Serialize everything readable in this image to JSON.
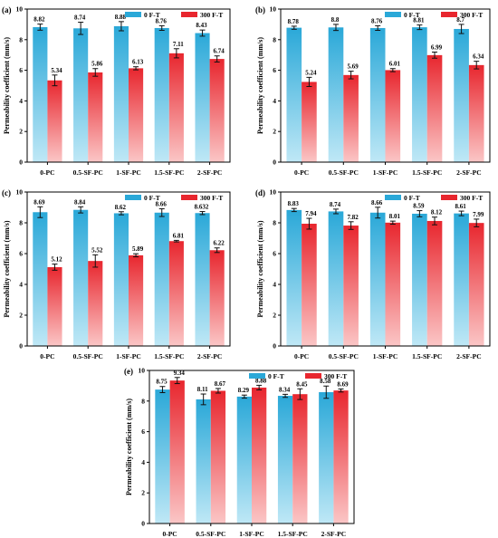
{
  "figure": {
    "type": "grouped-bar-panels"
  },
  "colors": {
    "series_a": "#2aa8d8",
    "series_a_light": "#bfe8f6",
    "series_b": "#e8262e",
    "series_b_light": "#fbc6c6",
    "axis": "#000000"
  },
  "chart_data": [
    {
      "type": "bar",
      "panel_label": "(a)",
      "categories": [
        "0-PC",
        "0.5-SF-PC",
        "1-SF-PC",
        "1.5-SF-PC",
        "2-SF-PC"
      ],
      "series": [
        {
          "name": "0 F-T",
          "values": [
            8.82,
            8.74,
            8.88,
            8.76,
            8.43
          ],
          "labels": [
            "8.82",
            "8.74",
            "8.88",
            "8.76",
            "8.43"
          ],
          "errors": [
            0.2,
            0.4,
            0.3,
            0.15,
            0.2
          ]
        },
        {
          "name": "300 F-T",
          "values": [
            5.34,
            5.86,
            6.13,
            7.11,
            6.74
          ],
          "labels": [
            "5.34",
            "5.86",
            "6.13",
            "7.11",
            "6.74"
          ],
          "errors": [
            0.35,
            0.25,
            0.1,
            0.3,
            0.2
          ]
        }
      ],
      "ylabel": "Permeability coefficient (mm/s)",
      "ylim": [
        0,
        10
      ],
      "yticks": [
        "0",
        "2",
        "4",
        "6",
        "8",
        "10"
      ],
      "legend": "top-right"
    },
    {
      "type": "bar",
      "panel_label": "(b)",
      "categories": [
        "0-PC",
        "0.5-SF-PC",
        "1-SF-PC",
        "1.5-SF-PC",
        "2-SF-PC"
      ],
      "series": [
        {
          "name": "0 F-T",
          "values": [
            8.78,
            8.8,
            8.76,
            8.81,
            8.7
          ],
          "labels": [
            "8.78",
            "8.8",
            "8.76",
            "8.81",
            "8.7"
          ],
          "errors": [
            0.1,
            0.2,
            0.15,
            0.15,
            0.3
          ]
        },
        {
          "name": "300 F-T",
          "values": [
            5.24,
            5.69,
            6.01,
            6.99,
            6.34
          ],
          "labels": [
            "5.24",
            "5.69",
            "6.01",
            "6.99",
            "6.34"
          ],
          "errors": [
            0.3,
            0.25,
            0.1,
            0.2,
            0.25
          ]
        }
      ],
      "ylabel": "Permeability coefficient (mm/s)",
      "ylim": [
        0,
        10
      ],
      "yticks": [
        "0",
        "2",
        "4",
        "6",
        "8",
        "10"
      ],
      "legend": "top-right"
    },
    {
      "type": "bar",
      "panel_label": "(c)",
      "categories": [
        "0-PC",
        "0.5-SF-PC",
        "1-SF-PC",
        "1.5-SF-PC",
        "2-SF-PC"
      ],
      "series": [
        {
          "name": "0 F-T",
          "values": [
            8.69,
            8.84,
            8.62,
            8.66,
            8.632
          ],
          "labels": [
            "8.69",
            "8.84",
            "8.62",
            "8.66",
            "8.632"
          ],
          "errors": [
            0.35,
            0.2,
            0.1,
            0.25,
            0.1
          ]
        },
        {
          "name": "300 F-T",
          "values": [
            5.12,
            5.52,
            5.89,
            6.81,
            6.22
          ],
          "labels": [
            "5.12",
            "5.52",
            "5.89",
            "6.81",
            "6.22"
          ],
          "errors": [
            0.2,
            0.4,
            0.1,
            0.05,
            0.15
          ]
        }
      ],
      "ylabel": "Permeability coefficient (mm/s)",
      "ylim": [
        0,
        10
      ],
      "yticks": [
        "0",
        "2",
        "4",
        "6",
        "8",
        "10"
      ],
      "legend": "top-right"
    },
    {
      "type": "bar",
      "panel_label": "(d)",
      "categories": [
        "0-PC",
        "0.5-SF-PC",
        "1-SF-PC",
        "1.5-SF-PC",
        "2-SF-PC"
      ],
      "series": [
        {
          "name": "0 F-T",
          "values": [
            8.83,
            8.74,
            8.66,
            8.59,
            8.61
          ],
          "labels": [
            "8.83",
            "8.74",
            "8.66",
            "8.59",
            "8.61"
          ],
          "errors": [
            0.1,
            0.15,
            0.35,
            0.2,
            0.15
          ]
        },
        {
          "name": "300 F-T",
          "values": [
            7.94,
            7.82,
            8.01,
            8.12,
            7.99
          ],
          "labels": [
            "7.94",
            "7.82",
            "8.01",
            "8.12",
            "7.99"
          ],
          "errors": [
            0.35,
            0.25,
            0.1,
            0.25,
            0.25
          ]
        }
      ],
      "ylabel": "Permeability coefficient (mm/s)",
      "ylim": [
        0,
        10
      ],
      "yticks": [
        "0",
        "2",
        "4",
        "6",
        "8",
        "10"
      ],
      "legend": "top-right"
    },
    {
      "type": "bar",
      "panel_label": "(e)",
      "categories": [
        "0-PC",
        "0.5-SF-PC",
        "1-SF-PC",
        "1.5-SF-PC",
        "2-SF-PC"
      ],
      "series": [
        {
          "name": "0 F-T",
          "values": [
            8.75,
            8.11,
            8.29,
            8.34,
            8.58
          ],
          "labels": [
            "8.75",
            "8.11",
            "8.29",
            "8.34",
            "8.58"
          ],
          "errors": [
            0.2,
            0.35,
            0.1,
            0.1,
            0.4
          ]
        },
        {
          "name": "300 F-T",
          "values": [
            9.34,
            8.67,
            8.88,
            8.45,
            8.69
          ],
          "labels": [
            "9.34",
            "8.67",
            "8.88",
            "8.45",
            "8.69"
          ],
          "errors": [
            0.2,
            0.15,
            0.15,
            0.35,
            0.1
          ]
        }
      ],
      "ylabel": "Permeability coefficient (mm/s)",
      "ylim": [
        0,
        10
      ],
      "yticks": [
        "0",
        "2",
        "4",
        "6",
        "8",
        "10"
      ],
      "legend": "top-right"
    }
  ]
}
